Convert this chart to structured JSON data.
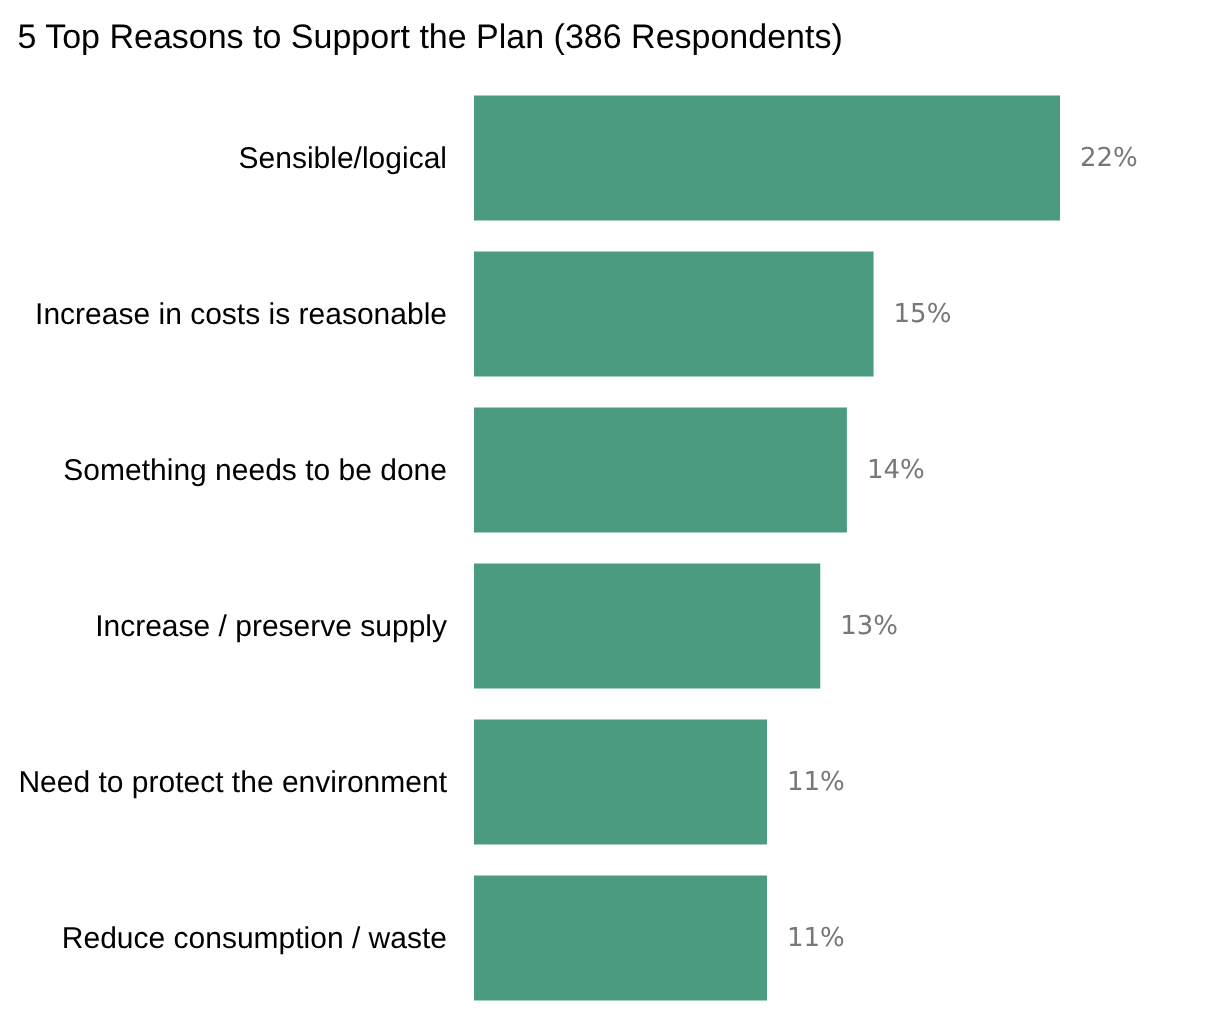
{
  "chart_data": {
    "type": "bar",
    "orientation": "horizontal",
    "title": "5 Top Reasons to Support the Plan (386 Respondents)",
    "categories": [
      "Sensible/logical",
      "Increase in costs is reasonable",
      "Something needs to be done",
      "Increase / preserve supply",
      "Need to protect the environment",
      "Reduce consumption / waste"
    ],
    "values": [
      22,
      15,
      14,
      13,
      11,
      11
    ],
    "value_labels": [
      "22%",
      "15%",
      "14%",
      "13%",
      "11%",
      "11%"
    ],
    "color": "#4b9b80",
    "grid": false
  }
}
